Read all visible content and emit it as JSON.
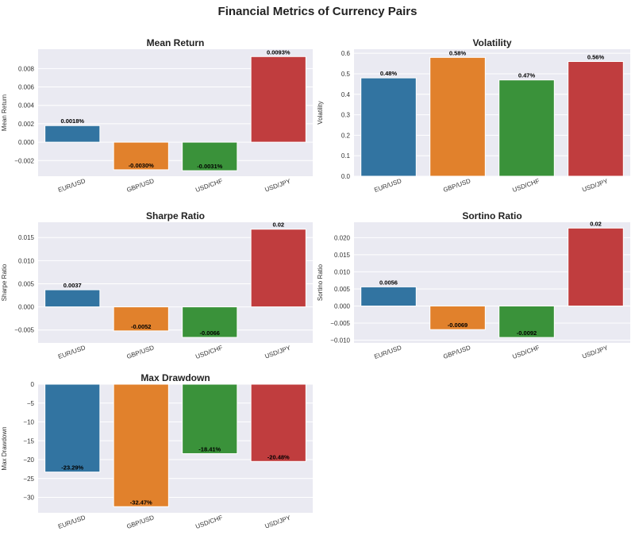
{
  "figure": {
    "title": "Financial Metrics of Currency Pairs"
  },
  "colors": {
    "background": "#eaeaf2",
    "grid": "#ffffff",
    "EUR/USD": "#3274a1",
    "GBP/USD": "#e1812c",
    "USD/CHF": "#3a923a",
    "USD/JPY": "#c03d3e"
  },
  "chart_data": [
    {
      "type": "bar",
      "title": "Mean Return",
      "ylabel": "Mean Return",
      "categories": [
        "EUR/USD",
        "GBP/USD",
        "USD/CHF",
        "USD/JPY"
      ],
      "values": [
        0.0018,
        -0.003,
        -0.0031,
        0.0093
      ],
      "labels": [
        "0.0018%",
        "-0.0030%",
        "-0.0031%",
        "0.0093%"
      ],
      "ylim": [
        -0.0037,
        0.0101
      ],
      "yticks": [
        -0.002,
        0.0,
        0.002,
        0.004,
        0.006,
        0.008
      ],
      "ytick_labels": [
        "−0.002",
        "0.000",
        "0.002",
        "0.004",
        "0.006",
        "0.008"
      ],
      "grid": true
    },
    {
      "type": "bar",
      "title": "Volatility",
      "ylabel": "Volatility",
      "categories": [
        "EUR/USD",
        "GBP/USD",
        "USD/CHF",
        "USD/JPY"
      ],
      "values": [
        0.48,
        0.58,
        0.47,
        0.56
      ],
      "labels": [
        "0.48%",
        "0.58%",
        "0.47%",
        "0.56%"
      ],
      "ylim": [
        0,
        0.62
      ],
      "yticks": [
        0.0,
        0.1,
        0.2,
        0.3,
        0.4,
        0.5,
        0.6
      ],
      "ytick_labels": [
        "0.0",
        "0.1",
        "0.2",
        "0.3",
        "0.4",
        "0.5",
        "0.6"
      ],
      "grid": true
    },
    {
      "type": "bar",
      "title": "Sharpe Ratio",
      "ylabel": "Sharpe Ratio",
      "categories": [
        "EUR/USD",
        "GBP/USD",
        "USD/CHF",
        "USD/JPY"
      ],
      "values": [
        0.0037,
        -0.0052,
        -0.0066,
        0.0168
      ],
      "labels": [
        "0.0037",
        "-0.0052",
        "-0.0066",
        "0.02"
      ],
      "ylim": [
        -0.0078,
        0.0183
      ],
      "yticks": [
        -0.005,
        0.0,
        0.005,
        0.01,
        0.015
      ],
      "ytick_labels": [
        "−0.005",
        "0.000",
        "0.005",
        "0.010",
        "0.015"
      ],
      "grid": true
    },
    {
      "type": "bar",
      "title": "Sortino Ratio",
      "ylabel": "Sortino Ratio",
      "categories": [
        "EUR/USD",
        "GBP/USD",
        "USD/CHF",
        "USD/JPY"
      ],
      "values": [
        0.0056,
        -0.0069,
        -0.0092,
        0.0228
      ],
      "labels": [
        "0.0056",
        "-0.0069",
        "-0.0092",
        "0.02"
      ],
      "ylim": [
        -0.0108,
        0.0245
      ],
      "yticks": [
        -0.01,
        -0.005,
        0.0,
        0.005,
        0.01,
        0.015,
        0.02
      ],
      "ytick_labels": [
        "−0.010",
        "−0.005",
        "0.000",
        "0.005",
        "0.010",
        "0.015",
        "0.020"
      ],
      "grid": true
    },
    {
      "type": "bar",
      "title": "Max Drawdown",
      "ylabel": "Max Drawdown",
      "categories": [
        "EUR/USD",
        "GBP/USD",
        "USD/CHF",
        "USD/JPY"
      ],
      "values": [
        -23.29,
        -32.47,
        -18.41,
        -20.48
      ],
      "labels": [
        "-23.29%",
        "-32.47%",
        "-18.41%",
        "-20.48%"
      ],
      "ylim": [
        -34.1,
        0
      ],
      "yticks": [
        -30,
        -25,
        -20,
        -15,
        -10,
        -5,
        0
      ],
      "ytick_labels": [
        "−30",
        "−25",
        "−20",
        "−15",
        "−10",
        "−5",
        "0"
      ],
      "grid": true
    }
  ]
}
